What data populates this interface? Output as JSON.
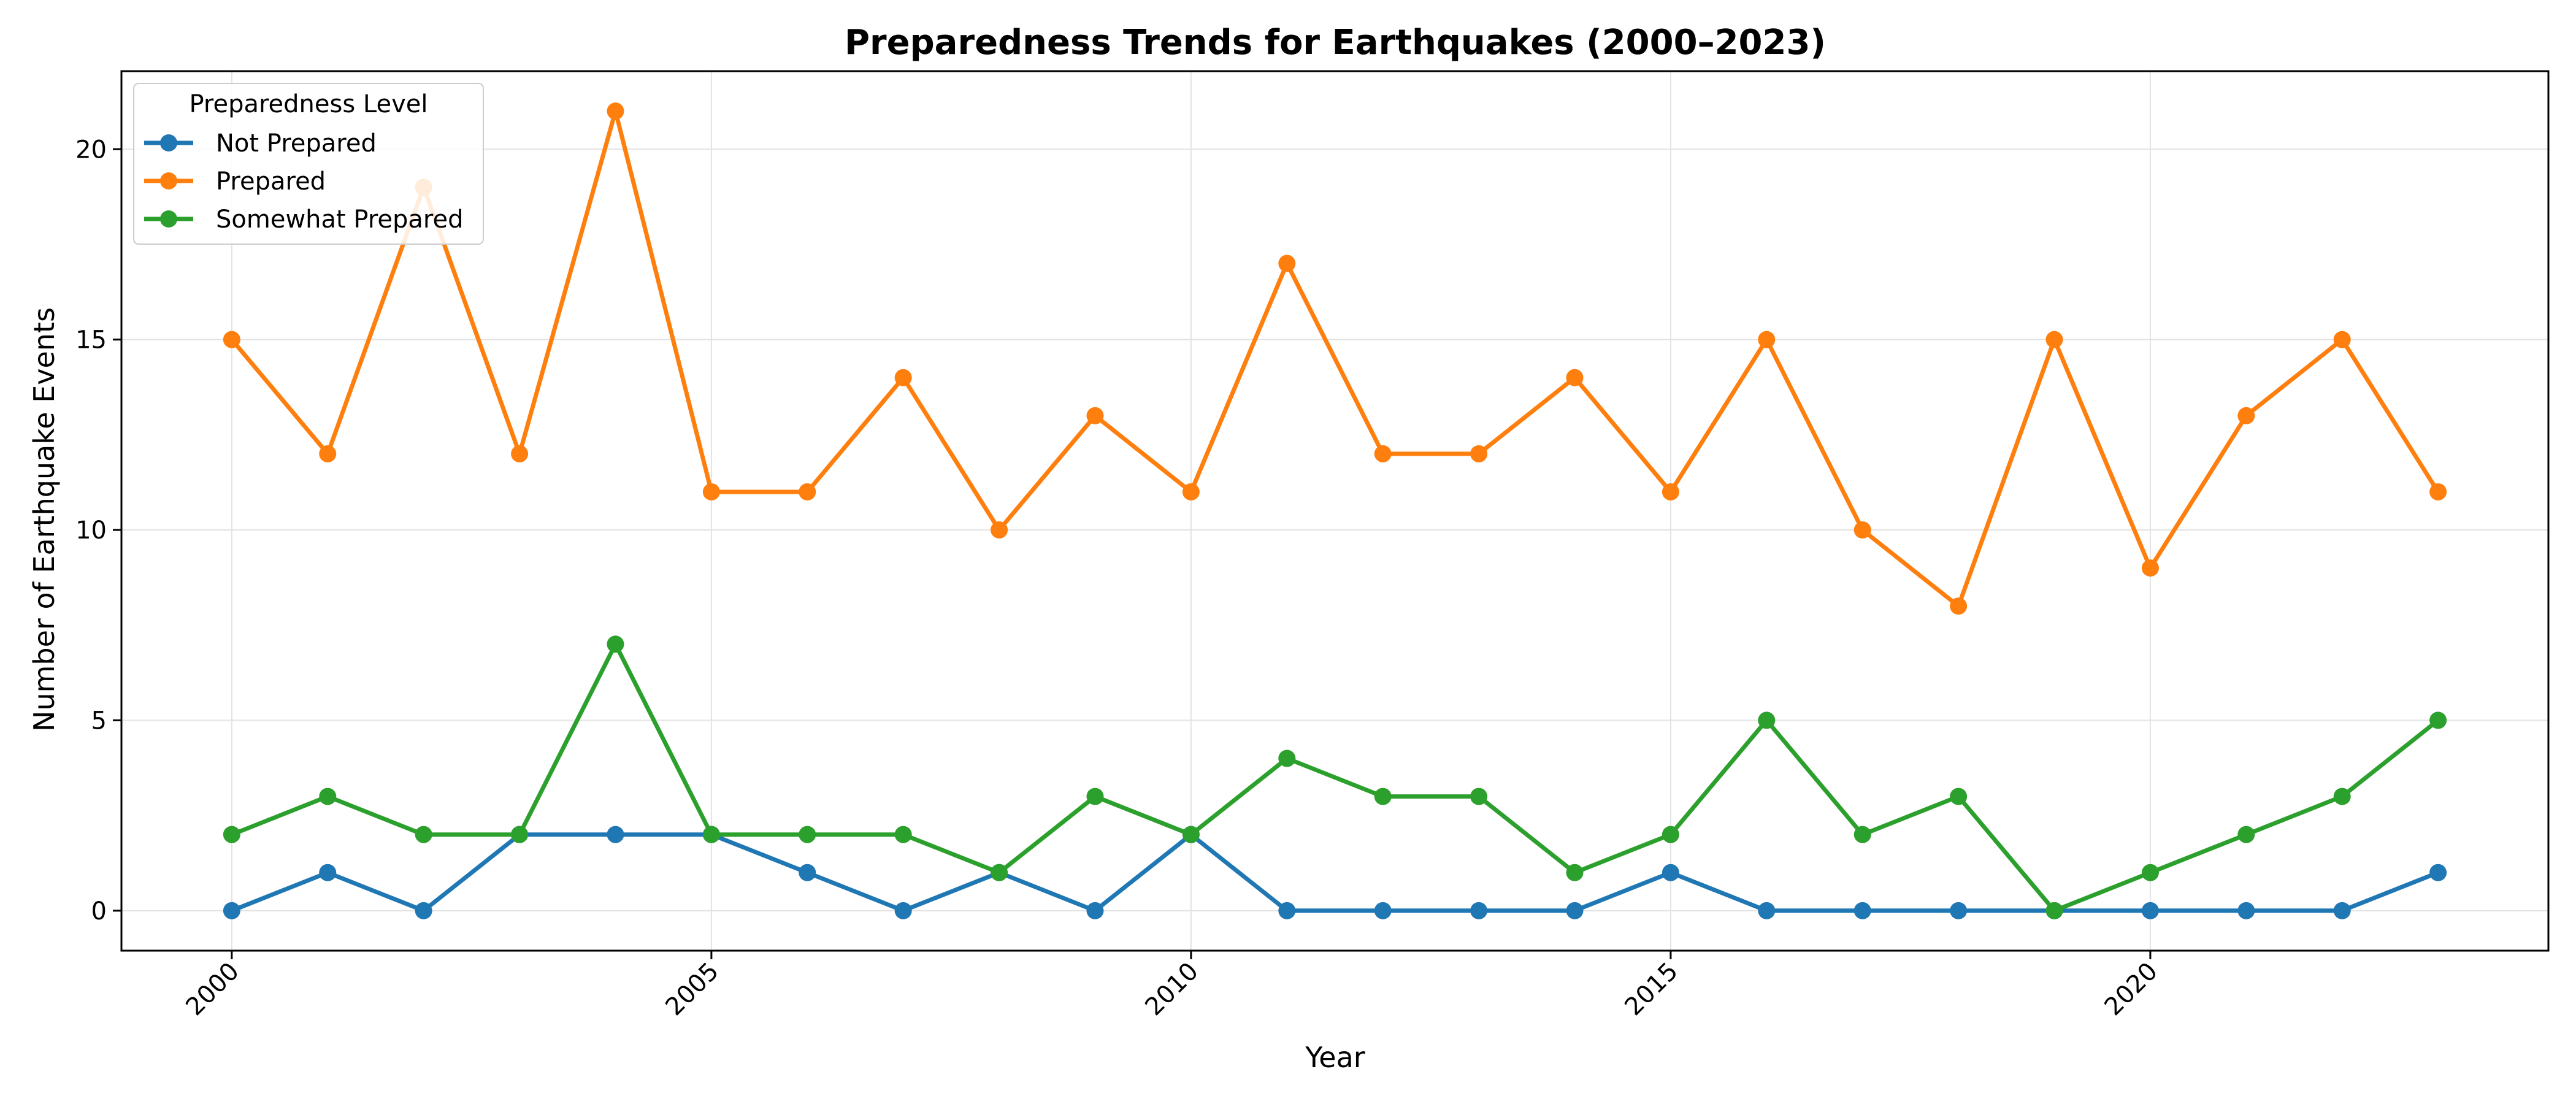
{
  "chart_data": {
    "type": "line",
    "title": "Preparedness Trends for Earthquakes (2000–2023)",
    "xlabel": "Year",
    "ylabel": "Number of Earthquake Events",
    "x": [
      2000,
      2001,
      2002,
      2003,
      2004,
      2005,
      2006,
      2007,
      2008,
      2009,
      2010,
      2011,
      2012,
      2013,
      2014,
      2015,
      2016,
      2017,
      2018,
      2019,
      2020,
      2021,
      2022,
      2023
    ],
    "xlim": [
      1998.85,
      2024.15
    ],
    "ylim": [
      -1.05,
      22.05
    ],
    "xticks": [
      2000,
      2005,
      2010,
      2015,
      2020
    ],
    "yticks": [
      0,
      5,
      10,
      15,
      20
    ],
    "grid": true,
    "legend": {
      "title": "Preparedness Level",
      "placement": "top-left"
    },
    "series": [
      {
        "name": "Not Prepared",
        "color": "#1f77b4",
        "values": [
          0,
          1,
          0,
          2,
          2,
          2,
          1,
          0,
          1,
          0,
          2,
          0,
          0,
          0,
          0,
          1,
          0,
          0,
          0,
          0,
          0,
          0,
          0,
          1
        ]
      },
      {
        "name": "Prepared",
        "color": "#ff7f0e",
        "values": [
          15,
          12,
          19,
          12,
          21,
          11,
          11,
          14,
          10,
          13,
          11,
          17,
          12,
          12,
          14,
          11,
          15,
          10,
          8,
          15,
          9,
          13,
          15,
          11
        ]
      },
      {
        "name": "Somewhat Prepared",
        "color": "#2ca02c",
        "values": [
          2,
          3,
          2,
          2,
          7,
          2,
          2,
          2,
          1,
          3,
          2,
          4,
          3,
          3,
          1,
          2,
          5,
          2,
          3,
          0,
          1,
          2,
          3,
          5
        ]
      }
    ]
  }
}
